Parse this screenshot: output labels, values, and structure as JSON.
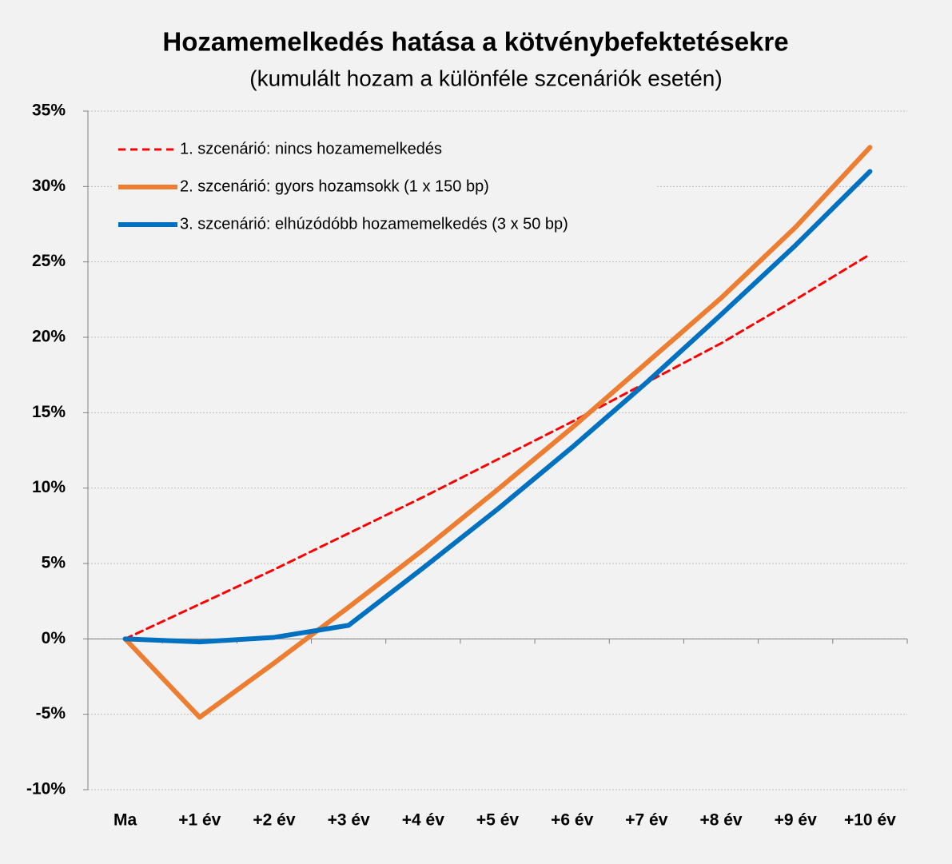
{
  "chart_data": {
    "type": "line",
    "title": "Hozamemelkedés hatása a kötvénybefektetésekre",
    "subtitle": "(kumulált hozam a különféle szcenáriók esetén)",
    "categories": [
      "Ma",
      "+1 év",
      "+2 év",
      "+3 év",
      "+4 év",
      "+5 év",
      "+6 év",
      "+7 év",
      "+8 év",
      "+9 év",
      "+10 év"
    ],
    "series": [
      {
        "name": "1. szcenárió: nincs hozamemelkedés",
        "color": "#ff0000",
        "dash": true,
        "values": [
          0,
          2.3,
          4.6,
          7.0,
          9.4,
          11.9,
          14.4,
          17.0,
          19.6,
          22.5,
          25.5
        ]
      },
      {
        "name": "2. szcenárió: gyors hozamsokk (1 x 150 bp)",
        "color": "#ed7d31",
        "values": [
          0,
          -5.2,
          -1.6,
          2.1,
          5.9,
          9.9,
          14.0,
          18.3,
          22.6,
          27.3,
          32.6
        ]
      },
      {
        "name": "3. szcenárió: elhúzódóbb hozamemelkedés (3 x 50 bp)",
        "color": "#0070c0",
        "values": [
          0,
          -0.2,
          0.1,
          0.9,
          4.7,
          8.6,
          12.7,
          17.0,
          21.5,
          26.1,
          31.0
        ]
      }
    ],
    "ylim": [
      -10,
      35
    ],
    "yticks": [
      {
        "value": -10,
        "label": "-10%"
      },
      {
        "value": -5,
        "label": "-5%"
      },
      {
        "value": 0,
        "label": "0%"
      },
      {
        "value": 5,
        "label": "5%"
      },
      {
        "value": 10,
        "label": "10%"
      },
      {
        "value": 15,
        "label": "15%"
      },
      {
        "value": 20,
        "label": "20%"
      },
      {
        "value": 25,
        "label": "25%"
      },
      {
        "value": 30,
        "label": "30%"
      },
      {
        "value": 35,
        "label": "35%"
      }
    ],
    "grid": true,
    "legend": "top-left"
  }
}
